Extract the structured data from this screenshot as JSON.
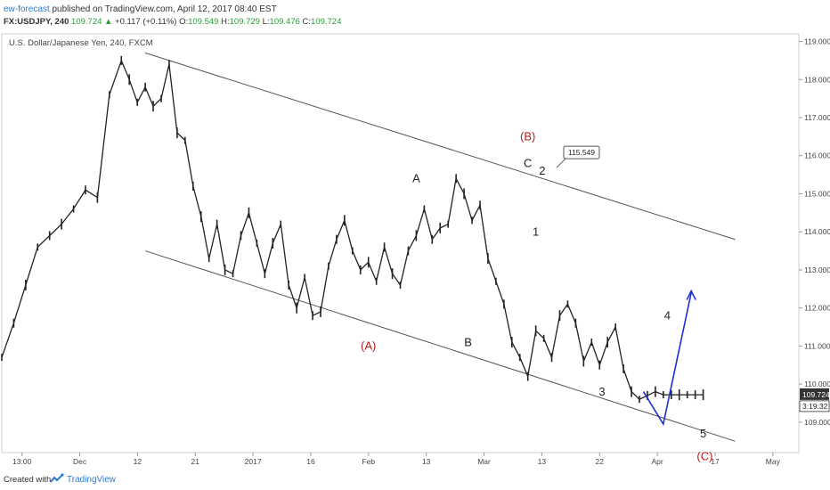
{
  "header": {
    "author": "ew-forecast",
    "published_text": "published on TradingView.com, April 12, 2017 08:40 EST",
    "symbol_interval": "FX:USDJPY, 240",
    "last_price": "109.724",
    "change": "+0.117 (+0.11%)",
    "o_label": "O:",
    "o_value": "109.549",
    "h_label": "H:",
    "h_value": "109.729",
    "l_label": "L:",
    "l_value": "109.476",
    "c_label": "C:",
    "c_value": "109.724"
  },
  "footer": {
    "created_with": "Created with",
    "brand": "TradingView"
  },
  "chart_data": {
    "type": "line",
    "title": "U.S. Dollar/Japanese Yen, 240, FXCM",
    "y_ticks": [
      "109.000",
      "110.000",
      "111.000",
      "112.000",
      "113.000",
      "114.000",
      "115.000",
      "116.000",
      "117.000",
      "118.000",
      "119.000"
    ],
    "x_ticks": [
      "13:00",
      "Dec",
      "12",
      "21",
      "2017",
      "16",
      "Feb",
      "13",
      "Mar",
      "13",
      "22",
      "Apr",
      "17",
      "May"
    ],
    "ylim": [
      108.2,
      119.2
    ],
    "x_domain": [
      0,
      100
    ],
    "series": [
      {
        "values_x": [
          0,
          1.5,
          3,
          4.5,
          6,
          7.5,
          9,
          10.5,
          12,
          13.5,
          15,
          16,
          17,
          18,
          19,
          20,
          21,
          22,
          23,
          24,
          25,
          26,
          27,
          28,
          29,
          30,
          31,
          32,
          33,
          34,
          35,
          36,
          37,
          38,
          39,
          40,
          41,
          42,
          43,
          44,
          45,
          46,
          47,
          48,
          49,
          50,
          51,
          52,
          53,
          54,
          55,
          56,
          57,
          58,
          59,
          60,
          61,
          62,
          63,
          64,
          65,
          66,
          67,
          68,
          69,
          70,
          71,
          72,
          73,
          74,
          75,
          76,
          77,
          78,
          79,
          80,
          81,
          82,
          83,
          84,
          85,
          86,
          87,
          88
        ],
        "values_y": [
          110.7,
          111.6,
          112.6,
          113.6,
          113.9,
          114.2,
          114.6,
          115.1,
          114.9,
          117.6,
          118.5,
          118.0,
          117.4,
          117.8,
          117.3,
          117.5,
          118.4,
          116.6,
          116.4,
          115.2,
          114.4,
          113.3,
          114.2,
          113.0,
          112.9,
          113.9,
          114.5,
          113.7,
          112.9,
          113.7,
          114.2,
          112.6,
          112.0,
          112.8,
          111.8,
          111.9,
          113.1,
          113.8,
          114.3,
          113.5,
          113.0,
          113.2,
          112.7,
          113.6,
          112.9,
          112.6,
          113.5,
          113.9,
          114.6,
          113.8,
          114.1,
          114.2,
          115.4,
          115.0,
          114.3,
          114.7,
          113.3,
          112.7,
          112.1,
          111.1,
          110.7,
          110.2,
          111.4,
          111.2,
          110.7,
          111.8,
          112.1,
          111.6,
          110.6,
          111.1,
          110.5,
          111.1,
          111.5,
          110.4,
          109.8,
          109.6,
          109.7,
          109.8,
          109.72,
          109.72,
          109.72,
          109.72,
          109.72,
          109.72
        ]
      }
    ],
    "projection": {
      "name": "",
      "x": [
        80.5,
        83,
        86.5
      ],
      "y": [
        109.8,
        108.95,
        112.4
      ]
    },
    "channel_upper": {
      "x": [
        18,
        92
      ],
      "y": [
        118.7,
        113.8
      ]
    },
    "channel_lower": {
      "x": [
        18,
        92
      ],
      "y": [
        113.5,
        108.5
      ]
    },
    "labels": [
      {
        "text": "(A)",
        "x": 46,
        "y": 110.9,
        "color": "#b71c1c"
      },
      {
        "text": "A",
        "x": 52,
        "y": 115.3,
        "color": "#222222"
      },
      {
        "text": "B",
        "x": 58.5,
        "y": 111.0,
        "color": "#222222"
      },
      {
        "text": "(B)",
        "x": 66,
        "y": 116.4,
        "color": "#b71c1c"
      },
      {
        "text": "C",
        "x": 66,
        "y": 115.7,
        "color": "#222222"
      },
      {
        "text": "2",
        "x": 67.8,
        "y": 115.5,
        "color": "#222222"
      },
      {
        "text": "1",
        "x": 67,
        "y": 113.9,
        "color": "#222222"
      },
      {
        "text": "3",
        "x": 75.3,
        "y": 109.7,
        "color": "#222222"
      },
      {
        "text": "4",
        "x": 83.5,
        "y": 111.7,
        "color": "#222222"
      },
      {
        "text": "5",
        "x": 88,
        "y": 108.6,
        "color": "#222222"
      },
      {
        "text": "(C)",
        "x": 88.2,
        "y": 108.0,
        "color": "#b71c1c"
      }
    ],
    "callout_price": "115.549",
    "last_price_label": "109.724",
    "countdown": "3:19:32",
    "colors": {
      "candles": "#222222",
      "channel": "#555555",
      "projection": "#1c2fd1",
      "label_red": "#b71c1c"
    }
  }
}
